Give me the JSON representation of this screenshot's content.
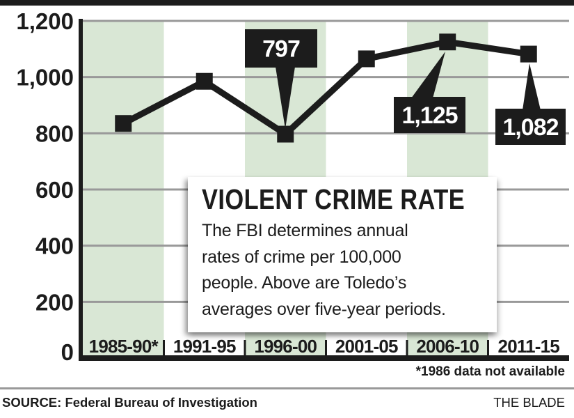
{
  "chart_data": {
    "type": "line",
    "title": "VIOLENT CRIME RATE",
    "description": "The FBI determines annual\nrates of crime per 100,000\npeople. Above are Toledo’s\naverages over five-year periods.",
    "categories": [
      "1985-90*",
      "1991-95",
      "1996-00",
      "2001-05",
      "2006-10",
      "2011-15"
    ],
    "values": [
      835,
      985,
      797,
      1065,
      1125,
      1082
    ],
    "annotations": [
      {
        "point": "1996-00",
        "label": "797",
        "placement": "above"
      },
      {
        "point": "2006-10",
        "label": "1,125",
        "placement": "below"
      },
      {
        "point": "2011-15",
        "label": "1,082",
        "placement": "below"
      }
    ],
    "ylim": [
      0,
      1200
    ],
    "yticks": [
      {
        "value": 0,
        "label": "0"
      },
      {
        "value": 200,
        "label": "200"
      },
      {
        "value": 400,
        "label": "400"
      },
      {
        "value": 600,
        "label": "600"
      },
      {
        "value": 800,
        "label": "800"
      },
      {
        "value": 1000,
        "label": "1,000"
      },
      {
        "value": 1200,
        "label": "1,200"
      }
    ],
    "grid": true,
    "legend": "none",
    "shaded_columns": [
      0,
      2,
      4
    ],
    "colors": {
      "line": "#1c1c1c",
      "marker": "#1c1c1c",
      "band": "#d9e7d5",
      "gridline": "#999999",
      "axis": "#1c1c1c",
      "callout_bg": "#1c1c1c",
      "callout_text": "#ffffff"
    }
  },
  "footnote": "*1986 data not available",
  "footer": {
    "source": "SOURCE: Federal Bureau of Investigation",
    "credit": "THE BLADE"
  }
}
